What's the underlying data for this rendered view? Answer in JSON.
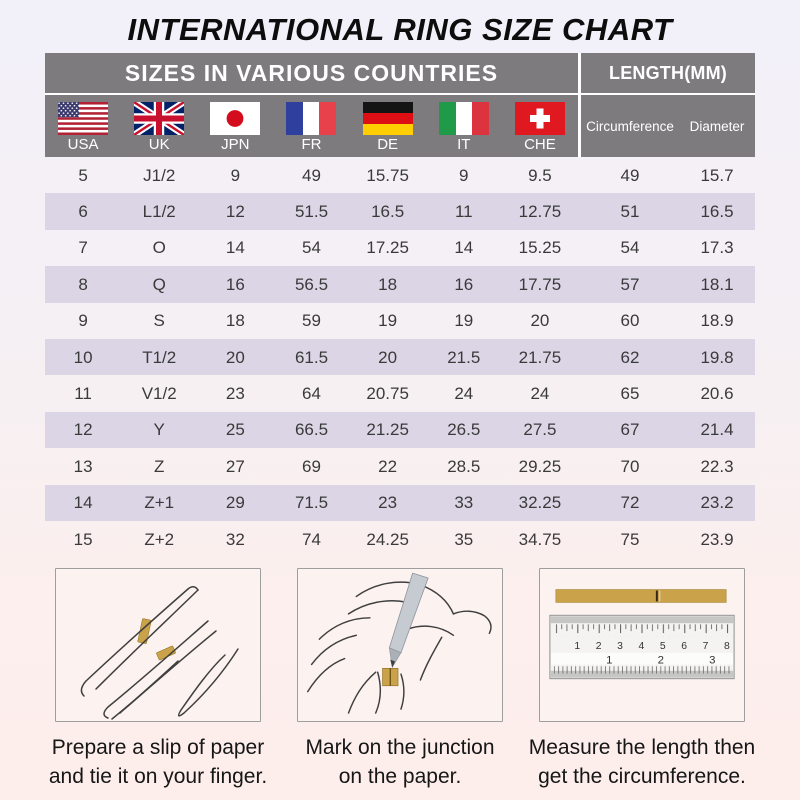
{
  "page": {
    "title": "INTERNATIONAL RING SIZE CHART"
  },
  "table": {
    "header_left": "SIZES IN VARIOUS COUNTRIES",
    "header_right": "LENGTH(MM)",
    "countries": [
      "USA",
      "UK",
      "JPN",
      "FR",
      "DE",
      "IT",
      "CHE"
    ],
    "length_columns": [
      "Circumference",
      "Diameter"
    ],
    "rows": [
      [
        "5",
        "J1/2",
        "9",
        "49",
        "15.75",
        "9",
        "9.5",
        "49",
        "15.7"
      ],
      [
        "6",
        "L1/2",
        "12",
        "51.5",
        "16.5",
        "11",
        "12.75",
        "51",
        "16.5"
      ],
      [
        "7",
        "O",
        "14",
        "54",
        "17.25",
        "14",
        "15.25",
        "54",
        "17.3"
      ],
      [
        "8",
        "Q",
        "16",
        "56.5",
        "18",
        "16",
        "17.75",
        "57",
        "18.1"
      ],
      [
        "9",
        "S",
        "18",
        "59",
        "19",
        "19",
        "20",
        "60",
        "18.9"
      ],
      [
        "10",
        "T1/2",
        "20",
        "61.5",
        "20",
        "21.5",
        "21.75",
        "62",
        "19.8"
      ],
      [
        "11",
        "V1/2",
        "23",
        "64",
        "20.75",
        "24",
        "24",
        "65",
        "20.6"
      ],
      [
        "12",
        "Y",
        "25",
        "66.5",
        "21.25",
        "26.5",
        "27.5",
        "67",
        "21.4"
      ],
      [
        "13",
        "Z",
        "27",
        "69",
        "22",
        "28.5",
        "29.25",
        "70",
        "22.3"
      ],
      [
        "14",
        "Z+1",
        "29",
        "71.5",
        "23",
        "33",
        "32.25",
        "72",
        "23.2"
      ],
      [
        "15",
        "Z+2",
        "32",
        "74",
        "24.25",
        "35",
        "34.75",
        "75",
        "23.9"
      ]
    ]
  },
  "instructions": {
    "steps": [
      {
        "caption": [
          "Prepare a slip of paper",
          "and tie it on your finger."
        ]
      },
      {
        "caption": [
          "Mark on the junction",
          "on the paper."
        ]
      },
      {
        "caption": [
          "Measure the length then",
          "get the circumference."
        ]
      }
    ],
    "ruler_cm": [
      "1",
      "2",
      "3",
      "4",
      "5",
      "6",
      "7",
      "8"
    ],
    "ruler_inch": [
      "1",
      "2",
      "3"
    ]
  },
  "colors": {
    "header_gray": "#7e7b7e",
    "row_alt": "#dbd5e6",
    "background_top": "#f2f0f9",
    "background_bottom": "#fdeeec",
    "paper_strip": "#c9a24a"
  }
}
